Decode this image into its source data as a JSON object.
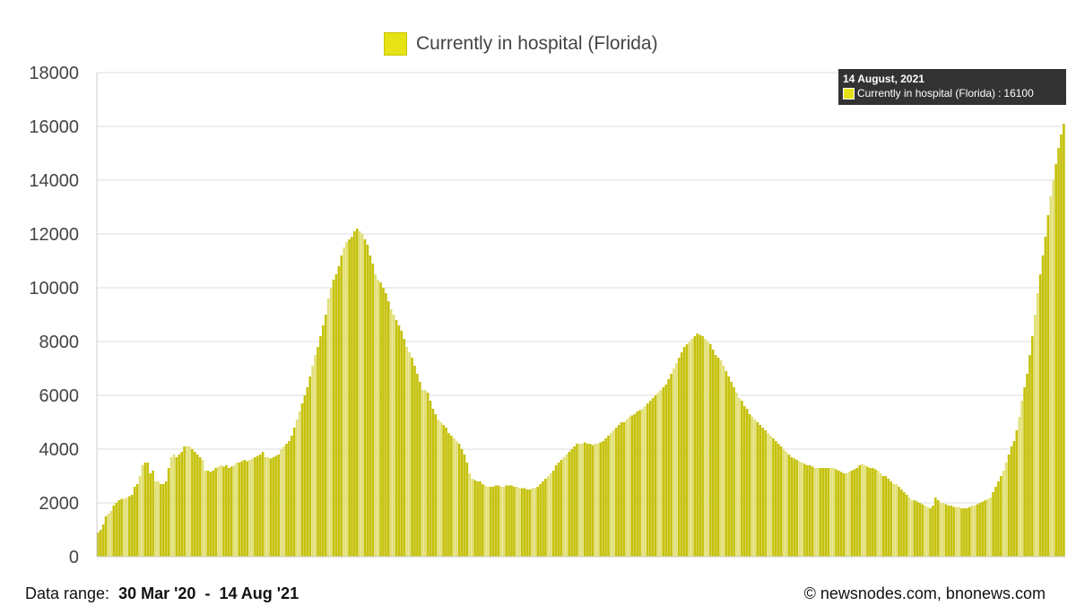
{
  "legend": {
    "label": "Currently in hospital (Florida)",
    "color": "#e6e213"
  },
  "tooltip": {
    "date": "14 August, 2021",
    "series_label": "Currently in hospital (Florida)",
    "value_text": "16100"
  },
  "footer": {
    "range_label": "Data range:",
    "range_start": "30 Mar '20",
    "range_sep": "-",
    "range_end": "14 Aug '21",
    "credit": "© newsnodes.com, bnonews.com"
  },
  "colors": {
    "bar_dark": "#c5c10b",
    "bar_light": "#e2df77",
    "grid": "#dddddd",
    "axis_text": "#444444"
  },
  "chart_data": {
    "type": "bar",
    "title": "",
    "xlabel": "",
    "ylabel": "",
    "ylim": [
      0,
      18000
    ],
    "yticks": [
      0,
      2000,
      4000,
      6000,
      8000,
      10000,
      12000,
      14000,
      16000,
      18000
    ],
    "grid": true,
    "legend_position": "top-center",
    "x_start": "2020-03-30",
    "x_end": "2021-08-14",
    "series": [
      {
        "name": "Currently in hospital (Florida)",
        "values": [
          900,
          1000,
          1200,
          1500,
          1600,
          1700,
          1900,
          2000,
          2100,
          2150,
          2150,
          2200,
          2250,
          2300,
          2600,
          2700,
          3000,
          3400,
          3500,
          3500,
          3100,
          3200,
          2800,
          2800,
          2700,
          2700,
          2800,
          3300,
          3700,
          3800,
          3700,
          3800,
          3900,
          4100,
          4100,
          4100,
          4000,
          3900,
          3800,
          3700,
          3600,
          3200,
          3200,
          3150,
          3200,
          3300,
          3350,
          3400,
          3350,
          3400,
          3300,
          3350,
          3400,
          3500,
          3500,
          3550,
          3600,
          3550,
          3600,
          3650,
          3700,
          3750,
          3800,
          3900,
          3700,
          3700,
          3650,
          3700,
          3750,
          3800,
          4000,
          4100,
          4200,
          4300,
          4500,
          4800,
          5100,
          5400,
          5700,
          6000,
          6300,
          6700,
          7100,
          7500,
          7800,
          8200,
          8600,
          9000,
          9600,
          10000,
          10300,
          10500,
          10800,
          11200,
          11500,
          11700,
          11800,
          11900,
          12100,
          12200,
          12100,
          12000,
          11800,
          11600,
          11200,
          10900,
          10500,
          10300,
          10200,
          10000,
          9800,
          9500,
          9200,
          9000,
          8800,
          8600,
          8400,
          8100,
          7800,
          7600,
          7400,
          7100,
          6800,
          6500,
          6200,
          6200,
          6100,
          5800,
          5500,
          5300,
          5100,
          5000,
          4900,
          4800,
          4600,
          4500,
          4400,
          4300,
          4200,
          4000,
          3800,
          3500,
          3100,
          2900,
          2850,
          2800,
          2800,
          2700,
          2650,
          2600,
          2600,
          2600,
          2650,
          2650,
          2600,
          2600,
          2650,
          2650,
          2650,
          2600,
          2600,
          2550,
          2550,
          2550,
          2500,
          2500,
          2550,
          2550,
          2600,
          2700,
          2800,
          2900,
          3000,
          3100,
          3200,
          3400,
          3500,
          3600,
          3700,
          3800,
          3900,
          4000,
          4100,
          4200,
          4200,
          4200,
          4250,
          4200,
          4200,
          4150,
          4200,
          4200,
          4250,
          4300,
          4400,
          4500,
          4600,
          4700,
          4800,
          4900,
          5000,
          5000,
          5100,
          5200,
          5250,
          5300,
          5400,
          5450,
          5500,
          5600,
          5700,
          5800,
          5900,
          6000,
          6100,
          6200,
          6300,
          6400,
          6600,
          6800,
          7000,
          7200,
          7400,
          7600,
          7800,
          7900,
          8000,
          8100,
          8200,
          8300,
          8250,
          8200,
          8100,
          8000,
          7900,
          7700,
          7500,
          7400,
          7300,
          7100,
          6900,
          6700,
          6500,
          6300,
          6100,
          5900,
          5800,
          5600,
          5500,
          5300,
          5200,
          5100,
          5000,
          4900,
          4800,
          4700,
          4600,
          4500,
          4400,
          4300,
          4200,
          4100,
          4000,
          3900,
          3800,
          3700,
          3650,
          3600,
          3550,
          3500,
          3450,
          3400,
          3400,
          3350,
          3300,
          3300,
          3300,
          3300,
          3300,
          3300,
          3300,
          3300,
          3250,
          3200,
          3150,
          3100,
          3100,
          3150,
          3200,
          3250,
          3300,
          3400,
          3450,
          3400,
          3350,
          3300,
          3300,
          3250,
          3200,
          3100,
          3000,
          3000,
          2900,
          2800,
          2700,
          2700,
          2600,
          2500,
          2400,
          2300,
          2200,
          2100,
          2100,
          2050,
          2000,
          1950,
          1900,
          1850,
          1800,
          1900,
          2200,
          2100,
          2000,
          2000,
          1950,
          1900,
          1900,
          1850,
          1850,
          1850,
          1800,
          1800,
          1800,
          1850,
          1900,
          1900,
          1950,
          2000,
          2050,
          2100,
          2150,
          2200,
          2400,
          2600,
          2800,
          3000,
          3200,
          3500,
          3800,
          4100,
          4300,
          4700,
          5200,
          5800,
          6300,
          6800,
          7500,
          8200,
          9000,
          9800,
          10500,
          11200,
          11900,
          12700,
          13400,
          14000,
          14600,
          15200,
          15700,
          16100
        ]
      }
    ]
  }
}
